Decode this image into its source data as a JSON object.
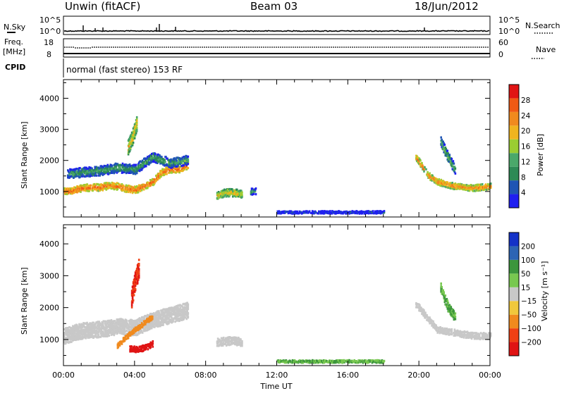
{
  "header": {
    "station": "Unwin (fitACF)",
    "beam": "Beam 03",
    "date": "18/Jun/2012"
  },
  "strip_nsky": {
    "left_label": "N.Sky",
    "right_label": "N.Search",
    "left_ticks": [
      "10^5",
      "10^0"
    ],
    "right_ticks": [
      "10^5",
      "10^0"
    ]
  },
  "strip_freq": {
    "left_label_line1": "Freq.",
    "left_label_line2": "[MHz]",
    "right_label": "Nave",
    "left_ticks": [
      "18",
      "8"
    ],
    "right_ticks": [
      "60",
      "0"
    ]
  },
  "strip_cpid": {
    "label": "CPID",
    "text": "normal (fast stereo) 153 RF"
  },
  "x_axis": {
    "label": "Time UT",
    "ticks": [
      "00:00",
      "04:00",
      "08:00",
      "12:00",
      "16:00",
      "20:00",
      "00:00"
    ],
    "range_hours": [
      0,
      24
    ]
  },
  "colors": {
    "power": [
      "#1f1ff0",
      "#1f55b4",
      "#2d8a55",
      "#4aa86a",
      "#9acd32",
      "#f0b41e",
      "#f08a1e",
      "#f05a14",
      "#e01414"
    ],
    "velocity": [
      "#e01414",
      "#f04014",
      "#f08a1e",
      "#f0c83c",
      "#c8c8c8",
      "#78c850",
      "#3c963c",
      "#2d64b4",
      "#1432c8"
    ]
  },
  "chart_data": [
    {
      "type": "heatmap",
      "panel": "power",
      "xlabel": "Time UT",
      "ylabel": "Slant Range [km]",
      "xlim_hours": [
        0,
        24
      ],
      "ylim": [
        180,
        4600
      ],
      "yticks": [
        1000,
        2000,
        3000,
        4000
      ],
      "colorbar": {
        "label": "Power [dB]",
        "ticks": [
          4,
          8,
          12,
          16,
          20,
          24,
          28
        ],
        "range": [
          0,
          32
        ]
      },
      "regions": [
        {
          "name": "main-band",
          "t": [
            0.0,
            0.5,
            1.0,
            1.5,
            2.0,
            2.5,
            3.0,
            3.5,
            4.0,
            4.5,
            5.0,
            5.5,
            6.0,
            6.5,
            7.0
          ],
          "r": [
            1000,
            1010,
            1100,
            1120,
            1120,
            1180,
            1150,
            1080,
            1040,
            1150,
            1300,
            1600,
            1700,
            1700,
            1850
          ],
          "width": 220,
          "power": 26
        },
        {
          "name": "upper-band",
          "t": [
            0.2,
            1.0,
            2.0,
            3.0,
            4.0,
            4.5,
            5.0,
            6.0,
            7.0
          ],
          "r": [
            1550,
            1600,
            1650,
            1750,
            1700,
            1900,
            2100,
            1900,
            2000
          ],
          "width": 300,
          "power": 12
        },
        {
          "name": "spike-0400",
          "t": [
            3.6,
            3.9,
            4.1
          ],
          "r": [
            2400,
            2800,
            3200
          ],
          "width": 500,
          "power": 20
        },
        {
          "name": "patch-0830",
          "t": [
            8.6,
            9.0,
            9.5,
            10.0
          ],
          "r": [
            850,
            950,
            950,
            900
          ],
          "width": 250,
          "power": 20
        },
        {
          "name": "patch-1030",
          "t": [
            10.5,
            10.8
          ],
          "r": [
            980,
            1000
          ],
          "width": 200,
          "power": 12
        },
        {
          "name": "ground-scatter",
          "t": [
            12.0,
            14.0,
            16.0,
            18.0
          ],
          "r": [
            320,
            320,
            320,
            320
          ],
          "width": 80,
          "power": 6
        },
        {
          "name": "arc-2000",
          "t": [
            19.8,
            20.5,
            21.0,
            22.0,
            23.0,
            24.0
          ],
          "r": [
            2100,
            1500,
            1300,
            1150,
            1100,
            1150
          ],
          "width": 200,
          "power": 24
        },
        {
          "name": "hook-2100",
          "t": [
            21.2,
            21.6,
            22.0
          ],
          "r": [
            2600,
            2100,
            1700
          ],
          "width": 300,
          "power": 14
        }
      ]
    },
    {
      "type": "heatmap",
      "panel": "velocity",
      "xlabel": "Time UT",
      "ylabel": "Slant Range [km]",
      "xlim_hours": [
        0,
        24
      ],
      "ylim": [
        180,
        4600
      ],
      "yticks": [
        1000,
        2000,
        3000,
        4000
      ],
      "colorbar": {
        "label": "Velocity [m s⁻¹]",
        "ticks": [
          200,
          100,
          50,
          15,
          -15,
          -50,
          -100,
          -200
        ]
      },
      "regions": [
        {
          "name": "main-band",
          "t": [
            0.0,
            1.0,
            2.0,
            3.0,
            4.0,
            5.0,
            6.0,
            7.0
          ],
          "r": [
            1100,
            1250,
            1300,
            1400,
            1350,
            1600,
            1750,
            1900
          ],
          "width": 500,
          "velocity": 0
        },
        {
          "name": "red-patch-0400",
          "t": [
            3.7,
            4.0,
            4.5,
            5.0
          ],
          "r": [
            700,
            680,
            720,
            850
          ],
          "width": 180,
          "velocity": -200
        },
        {
          "name": "red-spike-0400",
          "t": [
            3.8,
            4.0,
            4.2
          ],
          "r": [
            2300,
            2800,
            3200
          ],
          "width": 600,
          "velocity": -150
        },
        {
          "name": "orange-streak",
          "t": [
            3.0,
            4.0,
            5.0
          ],
          "r": [
            800,
            1300,
            1700
          ],
          "width": 150,
          "velocity": -60
        },
        {
          "name": "patch-0830",
          "t": [
            8.6,
            9.5,
            10.0
          ],
          "r": [
            900,
            950,
            900
          ],
          "width": 250,
          "velocity": 0
        },
        {
          "name": "ground-scatter",
          "t": [
            12.0,
            14.0,
            16.0,
            18.0
          ],
          "r": [
            300,
            300,
            300,
            300
          ],
          "width": 80,
          "velocity": 30
        },
        {
          "name": "arc-2000",
          "t": [
            19.8,
            21.0,
            22.0,
            23.0,
            24.0
          ],
          "r": [
            2100,
            1300,
            1200,
            1100,
            1100
          ],
          "width": 200,
          "velocity": 0
        },
        {
          "name": "hook-2100",
          "t": [
            21.2,
            21.6,
            22.0
          ],
          "r": [
            2600,
            2000,
            1700
          ],
          "width": 300,
          "velocity": 40
        }
      ]
    }
  ]
}
